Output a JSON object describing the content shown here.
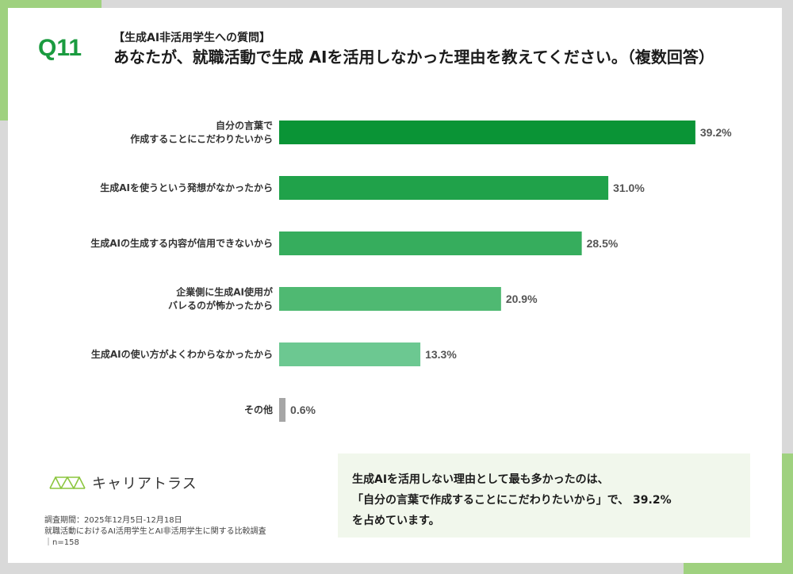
{
  "header": {
    "question_no": "Q11",
    "subtitle": "【生成AI非活用学生への質問】",
    "title": "あなたが、就職活動で生成 AIを活用しなかった理由を教えてください。（複数回答）"
  },
  "colors": {
    "accent": "#9fd17f",
    "bars": [
      "#0a9436",
      "#20a24a",
      "#36ad5d",
      "#4fb972",
      "#6cc891",
      "#a6a6a6"
    ]
  },
  "chart_data": {
    "type": "bar",
    "orientation": "horizontal",
    "categories": [
      [
        "自分の言葉で",
        "作成することにこだわりたいから"
      ],
      [
        "生成AIを使うという発想がなかったから"
      ],
      [
        "生成AIの生成する内容が信用できないから"
      ],
      [
        "企業側に生成AI使用が",
        "バレるのが怖かったから"
      ],
      [
        "生成AIの使い方がよくわからなかったから"
      ],
      [
        "その他"
      ]
    ],
    "values": [
      39.2,
      31.0,
      28.5,
      20.9,
      13.3,
      0.6
    ],
    "value_labels": [
      "39.2%",
      "31.0%",
      "28.5%",
      "20.9%",
      "13.3%",
      "0.6%"
    ],
    "unit": "%",
    "xlim": [
      0,
      40
    ],
    "grid": false,
    "legend": "none"
  },
  "logo": {
    "icon": "truss-logo-icon",
    "name": "キャリアトラス"
  },
  "footnote": {
    "period": "調査期間：2025年12月5日-12月18日",
    "survey": "就職活動におけるAI活用学生とAI非活用学生に関する比較調査",
    "sample": "｜n=158"
  },
  "callout": {
    "line1": "生成AIを活用しない理由として最も多かったのは、",
    "line2": "「自分の言葉で作成することにこだわりたいから」で、 39.2%",
    "line3": "を占めています。"
  }
}
